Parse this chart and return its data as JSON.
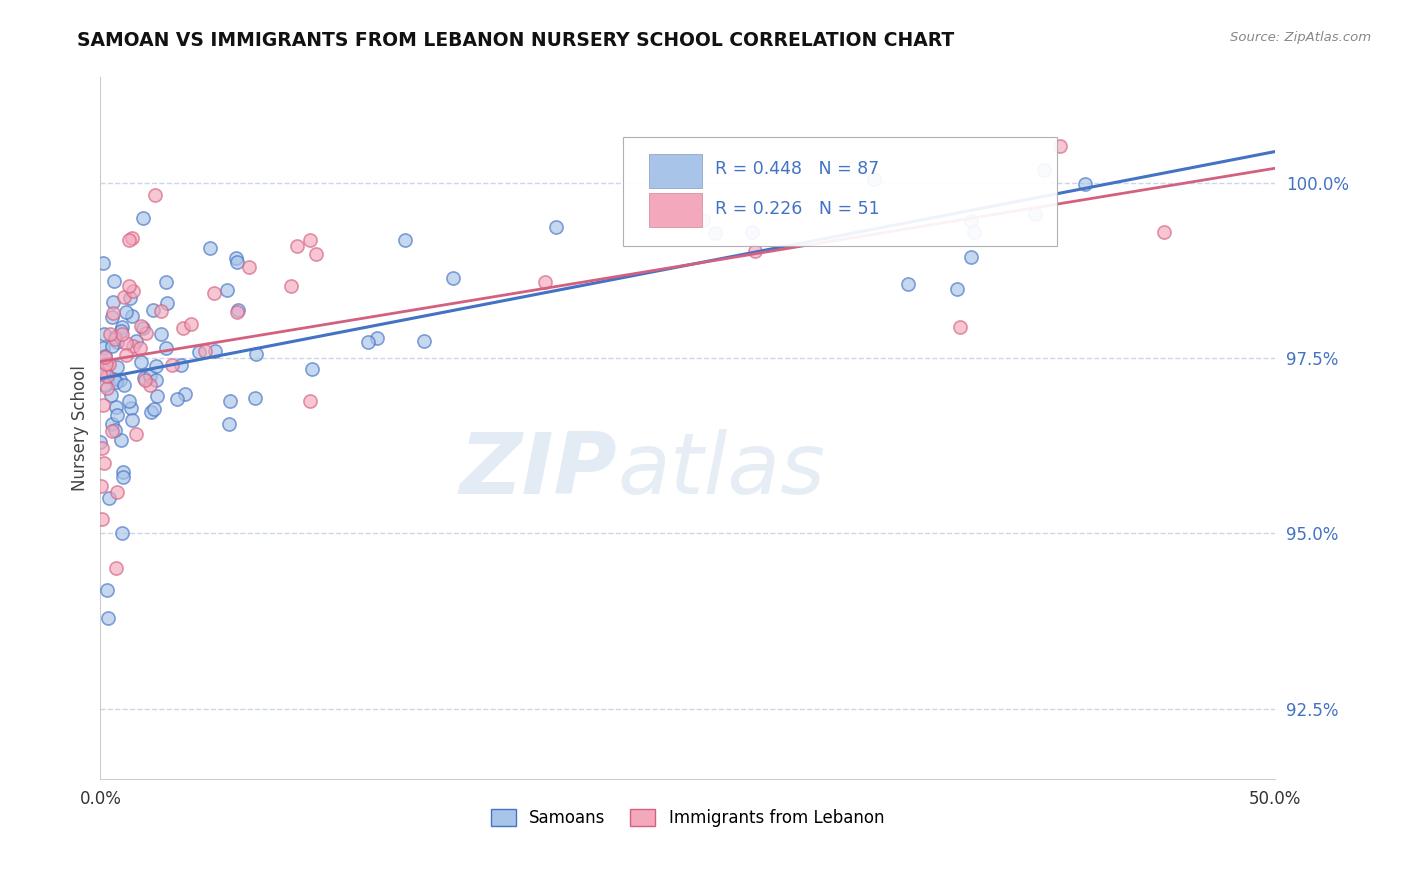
{
  "title": "SAMOAN VS IMMIGRANTS FROM LEBANON NURSERY SCHOOL CORRELATION CHART",
  "source_text": "Source: ZipAtlas.com",
  "ylabel": "Nursery School",
  "color_samoans": "#a8c4e8",
  "color_lebanon": "#f4a8bc",
  "color_line_samoans": "#4472C4",
  "color_line_lebanon": "#D46080",
  "background_color": "#ffffff",
  "grid_color": "#c8d4e8",
  "xmin": 0.0,
  "xmax": 0.5,
  "ymin": 91.5,
  "ymax": 101.5,
  "yticks": [
    92.5,
    95.0,
    97.5,
    100.0
  ],
  "ytick_labels": [
    "92.5%",
    "95.0%",
    "97.5%",
    "100.0%"
  ],
  "R_samoans": 0.448,
  "N_samoans": 87,
  "R_lebanon": 0.226,
  "N_lebanon": 51,
  "watermark_ZIP": "ZIP",
  "watermark_atlas": "atlas"
}
